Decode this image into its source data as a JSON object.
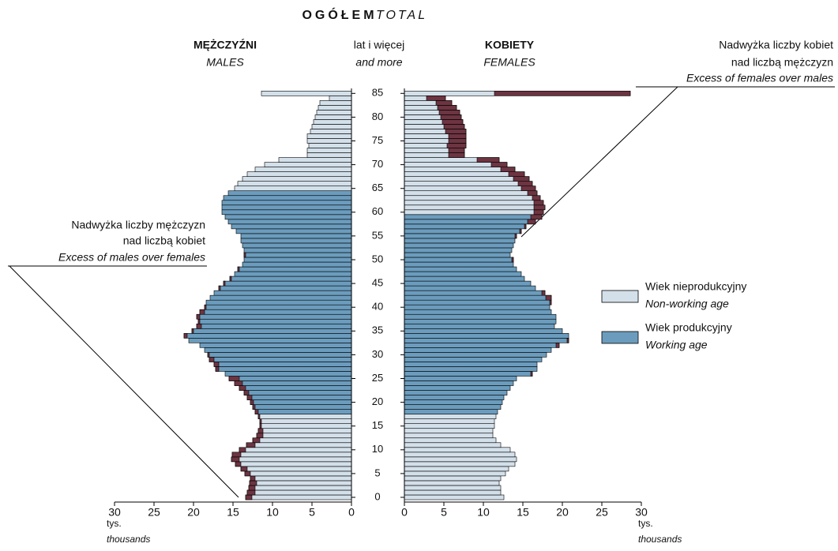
{
  "chart_data": {
    "type": "pyramid",
    "title": "OGÓŁEM",
    "subtitle": "TOTAL",
    "age_label": "lat i więcej",
    "age_label_en": "and more",
    "unit_label": "tys.",
    "unit_label_en": "thousands",
    "categories": [
      0,
      1,
      2,
      3,
      4,
      5,
      6,
      7,
      8,
      9,
      10,
      11,
      12,
      13,
      14,
      15,
      16,
      17,
      18,
      19,
      20,
      21,
      22,
      23,
      24,
      25,
      26,
      27,
      28,
      29,
      30,
      31,
      32,
      33,
      34,
      35,
      36,
      37,
      38,
      39,
      40,
      41,
      42,
      43,
      44,
      45,
      46,
      47,
      48,
      49,
      50,
      51,
      52,
      53,
      54,
      55,
      56,
      57,
      58,
      59,
      60,
      61,
      62,
      63,
      64,
      65,
      66,
      67,
      68,
      69,
      70,
      71,
      72,
      73,
      74,
      75,
      76,
      77,
      78,
      79,
      80,
      81,
      82,
      83,
      84,
      85
    ],
    "age_ticks": [
      0,
      5,
      10,
      15,
      20,
      25,
      30,
      35,
      40,
      45,
      50,
      55,
      60,
      65,
      70,
      75,
      80,
      85
    ],
    "xlim": [
      0,
      30
    ],
    "xticks": [
      0,
      5,
      10,
      15,
      20,
      25,
      30
    ],
    "series": [
      {
        "name": "MĘŻCZYŹNI",
        "name_en": "MALES",
        "working_age": [
          18,
          64
        ],
        "values": [
          13.4,
          13.2,
          13.0,
          12.9,
          12.8,
          13.5,
          14.0,
          14.7,
          15.2,
          15.1,
          14.2,
          13.3,
          12.5,
          12.0,
          11.8,
          11.6,
          11.6,
          11.8,
          12.2,
          12.5,
          12.8,
          13.2,
          13.6,
          14.2,
          14.8,
          15.5,
          16.0,
          17.2,
          17.4,
          18.0,
          18.2,
          18.6,
          19.2,
          20.6,
          21.2,
          20.2,
          19.6,
          19.4,
          19.6,
          19.2,
          18.6,
          18.4,
          17.9,
          17.4,
          16.8,
          16.2,
          15.4,
          14.8,
          14.4,
          13.8,
          13.6,
          13.6,
          13.6,
          13.8,
          14.0,
          14.0,
          14.6,
          15.2,
          15.6,
          16.0,
          16.4,
          16.4,
          16.4,
          16.2,
          15.6,
          14.8,
          14.4,
          13.8,
          13.2,
          12.2,
          11.0,
          9.2,
          5.6,
          5.6,
          5.4,
          5.6,
          5.6,
          5.2,
          5.0,
          4.8,
          4.6,
          4.4,
          4.2,
          4.0,
          2.8,
          11.4
        ]
      },
      {
        "name": "KOBIETY",
        "name_en": "FEMALES",
        "working_age": [
          18,
          59
        ],
        "values": [
          12.6,
          12.2,
          12.2,
          12.0,
          12.2,
          12.8,
          13.2,
          14.0,
          14.2,
          14.0,
          13.4,
          12.2,
          11.6,
          11.2,
          11.2,
          11.4,
          11.4,
          11.6,
          11.8,
          12.2,
          12.4,
          12.6,
          13.0,
          13.4,
          13.8,
          14.2,
          16.2,
          16.8,
          16.8,
          17.4,
          18.0,
          18.6,
          19.6,
          20.8,
          20.8,
          20.0,
          19.0,
          19.2,
          19.2,
          18.6,
          18.4,
          18.6,
          18.6,
          17.8,
          16.6,
          16.0,
          15.2,
          14.8,
          14.2,
          13.8,
          13.8,
          13.4,
          13.6,
          13.8,
          14.0,
          14.2,
          14.8,
          15.4,
          16.6,
          17.4,
          17.6,
          17.8,
          17.6,
          17.2,
          16.8,
          16.6,
          16.2,
          15.8,
          15.2,
          14.0,
          13.0,
          12.0,
          7.6,
          7.6,
          7.8,
          7.8,
          7.8,
          7.8,
          7.6,
          7.4,
          7.2,
          7.0,
          6.6,
          6.0,
          5.2,
          28.6
        ]
      }
    ],
    "colors": {
      "non_working": "#d3e0ea",
      "working": "#6b9cbd",
      "excess": "#6d3441"
    },
    "legend": [
      {
        "label": "Wiek nieprodukcyjny",
        "label_en": "Non-working age"
      },
      {
        "label": "Wiek produkcyjny",
        "label_en": "Working age"
      }
    ],
    "annotations": [
      {
        "lines": [
          "Nadwyżka liczby mężczyzn",
          "nad liczbą kobiet"
        ],
        "en": "Excess of males over females"
      },
      {
        "lines": [
          "Nadwyżka liczby kobiet",
          "nad liczbą mężczyzn"
        ],
        "en": "Excess of females over males"
      }
    ]
  }
}
